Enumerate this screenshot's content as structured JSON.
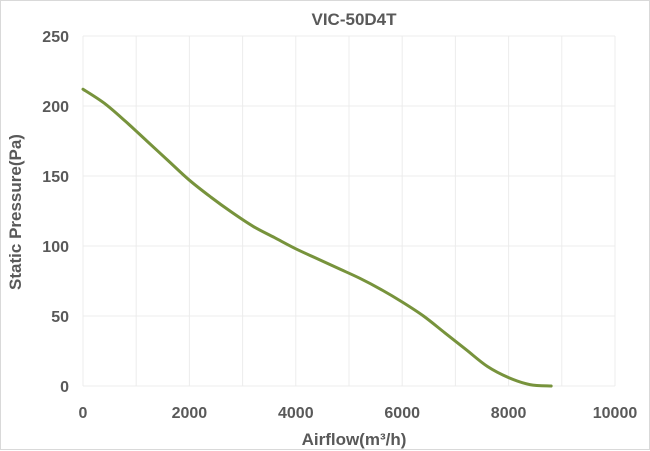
{
  "chart_data": {
    "type": "line",
    "title": "VIC-50D4T",
    "xlabel": "Airflow(m³/h)",
    "ylabel": "Static Pressure(Pa)",
    "xlim": [
      0,
      10000
    ],
    "ylim": [
      0,
      250
    ],
    "xticks": [
      0,
      1000,
      2000,
      3000,
      4000,
      5000,
      6000,
      7000,
      8000,
      9000,
      10000
    ],
    "yticks": [
      0,
      50,
      100,
      150,
      200,
      250
    ],
    "xtick_labels": [
      "0",
      "2000",
      "4000",
      "6000",
      "8000",
      "10000"
    ],
    "ytick_labels": [
      "0",
      "50",
      "100",
      "150",
      "200",
      "250"
    ],
    "grid": true,
    "legend": "none",
    "series": [
      {
        "color": "#77933c",
        "x": [
          0,
          400,
          800,
          1200,
          1600,
          2000,
          2400,
          2800,
          3200,
          3600,
          4000,
          4400,
          4800,
          5200,
          5600,
          6000,
          6400,
          6800,
          7200,
          7600,
          8000,
          8400,
          8800
        ],
        "y": [
          212,
          202,
          189,
          175,
          161,
          147,
          135,
          124,
          114,
          106,
          98,
          91,
          84,
          77,
          69,
          60,
          50,
          38,
          26,
          14,
          6,
          1,
          0
        ]
      }
    ]
  }
}
